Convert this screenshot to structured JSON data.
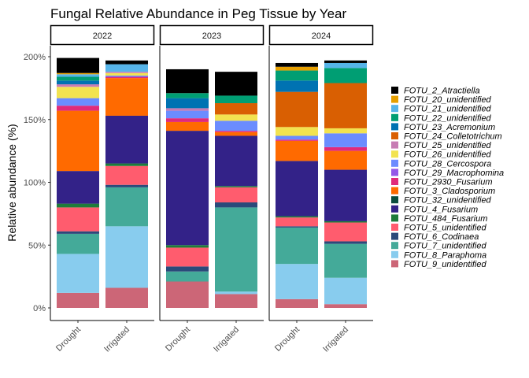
{
  "chart_data": {
    "type": "bar",
    "stacked": true,
    "title": "Fungal Relative Abundance in Peg Tissue by Year",
    "xlabel": "",
    "ylabel": "Relative abundance (%)",
    "ylim": [
      0,
      200
    ],
    "yticks": [
      0,
      50,
      100,
      150,
      200
    ],
    "ytick_labels": [
      "0%",
      "50%",
      "100%",
      "150%",
      "200%"
    ],
    "facets": [
      "2022",
      "2023",
      "2024"
    ],
    "categories": [
      "Drought",
      "Irrigated"
    ],
    "legend_position": "right",
    "grid": false,
    "series": [
      {
        "name": "FOTU_9_unidentified",
        "color": "#CC6677",
        "values": {
          "2022": [
            12,
            16
          ],
          "2023": [
            21,
            11
          ],
          "2024": [
            7,
            3
          ]
        }
      },
      {
        "name": "FOTU_8_Paraphoma",
        "color": "#88CCEE",
        "values": {
          "2022": [
            31,
            49
          ],
          "2023": [
            0,
            2
          ],
          "2024": [
            28,
            21
          ]
        }
      },
      {
        "name": "FOTU_7_unidentified",
        "color": "#44AA99",
        "values": {
          "2022": [
            16,
            31
          ],
          "2023": [
            8,
            67
          ],
          "2024": [
            29,
            27
          ]
        }
      },
      {
        "name": "FOTU_6_Codinaea",
        "color": "#2B4A7A",
        "values": {
          "2022": [
            2,
            2
          ],
          "2023": [
            4,
            4
          ],
          "2024": [
            1,
            2
          ]
        }
      },
      {
        "name": "FOTU_5_unidentified",
        "color": "#FF5C6E",
        "values": {
          "2022": [
            19,
            15
          ],
          "2023": [
            15,
            12
          ],
          "2024": [
            7,
            15
          ]
        }
      },
      {
        "name": "FOTU_484_Fusarium",
        "color": "#1E7B3A",
        "values": {
          "2022": [
            3,
            2
          ],
          "2023": [
            2,
            1
          ],
          "2024": [
            1,
            1
          ]
        }
      },
      {
        "name": "FOTU_4_Fusarium",
        "color": "#332288",
        "values": {
          "2022": [
            26,
            38
          ],
          "2023": [
            91,
            40
          ],
          "2024": [
            44,
            41
          ]
        }
      },
      {
        "name": "FOTU_32_unidentified",
        "color": "#0B4D3E",
        "values": {
          "2022": [
            0,
            0
          ],
          "2023": [
            0,
            0
          ],
          "2024": [
            0,
            0
          ]
        }
      },
      {
        "name": "FOTU_3_Cladosporium",
        "color": "#FF6A00",
        "values": {
          "2022": [
            48,
            30
          ],
          "2023": [
            7,
            3
          ],
          "2024": [
            16,
            15
          ]
        }
      },
      {
        "name": "FOTU_2930_Fusarium",
        "color": "#E02A7A",
        "values": {
          "2022": [
            4,
            1
          ],
          "2023": [
            3,
            1
          ],
          "2024": [
            1,
            3
          ]
        }
      },
      {
        "name": "FOTU_29_Macrophomina",
        "color": "#9457E8",
        "values": {
          "2022": [
            0,
            0
          ],
          "2023": [
            0,
            0
          ],
          "2024": [
            0,
            0
          ]
        }
      },
      {
        "name": "FOTU_28_Cercospora",
        "color": "#6B8CFF",
        "values": {
          "2022": [
            6,
            1
          ],
          "2023": [
            6,
            8
          ],
          "2024": [
            3,
            11
          ]
        }
      },
      {
        "name": "FOTU_26_unidentified",
        "color": "#F2E350",
        "values": {
          "2022": [
            9,
            2
          ],
          "2023": [
            0,
            5
          ],
          "2024": [
            7,
            4
          ]
        }
      },
      {
        "name": "FOTU_25_unidentified",
        "color": "#C77CB4",
        "values": {
          "2022": [
            2,
            1
          ],
          "2023": [
            2,
            0
          ],
          "2024": [
            0,
            0
          ]
        }
      },
      {
        "name": "FOTU_24_Colletotrichum",
        "color": "#D95F02",
        "values": {
          "2022": [
            0,
            0
          ],
          "2023": [
            0,
            9
          ],
          "2024": [
            28,
            36
          ]
        }
      },
      {
        "name": "FOTU_23_Acremonium",
        "color": "#0072B2",
        "values": {
          "2022": [
            3,
            0
          ],
          "2023": [
            8,
            0
          ],
          "2024": [
            9,
            0
          ]
        }
      },
      {
        "name": "FOTU_22_unidentified",
        "color": "#009E73",
        "values": {
          "2022": [
            3,
            0
          ],
          "2023": [
            4,
            6
          ],
          "2024": [
            8,
            12
          ]
        }
      },
      {
        "name": "FOTU_21_unidentified",
        "color": "#56B4E9",
        "values": {
          "2022": [
            2,
            6
          ],
          "2023": [
            0,
            0
          ],
          "2024": [
            0,
            4
          ]
        }
      },
      {
        "name": "FOTU_20_unidentified",
        "color": "#E69F00",
        "values": {
          "2022": [
            1,
            0
          ],
          "2023": [
            0,
            0
          ],
          "2024": [
            3,
            0
          ]
        }
      },
      {
        "name": "FOTU_2_Atractiella",
        "color": "#000000",
        "values": {
          "2022": [
            12,
            3
          ],
          "2023": [
            19,
            19
          ],
          "2024": [
            3,
            2
          ]
        }
      }
    ]
  }
}
